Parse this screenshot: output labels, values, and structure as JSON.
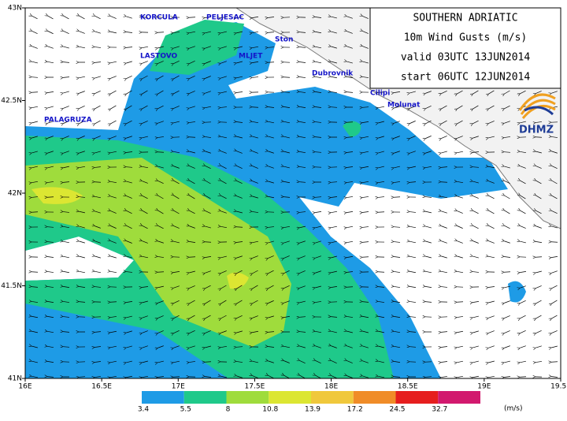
{
  "title_box": {
    "lines": [
      "SOUTHERN ADRIATIC",
      "10m Wind Gusts (m/s)",
      "valid 03UTC 13JUN2014",
      "start 06UTC 12JUN2014"
    ]
  },
  "places": [
    "KORCULA",
    "PELJESAC",
    "LASTOVO",
    "MLJET",
    "Ston",
    "Dubrovnik",
    "Cilipi",
    "Molunat",
    "PALAGRUZA"
  ],
  "map": {
    "xlim": [
      16,
      19.5
    ],
    "ylim": [
      41,
      43
    ],
    "xticks": [
      {
        "value": 16,
        "label": "16E"
      },
      {
        "value": 16.5,
        "label": "16.5E"
      },
      {
        "value": 17,
        "label": "17E"
      },
      {
        "value": 17.5,
        "label": "17.5E"
      },
      {
        "value": 18,
        "label": "18E"
      },
      {
        "value": 18.5,
        "label": "18.5E"
      },
      {
        "value": 19,
        "label": "19E"
      },
      {
        "value": 19.5,
        "label": "19.5E"
      }
    ],
    "yticks": [
      {
        "value": 41,
        "label": "41N"
      },
      {
        "value": 41.5,
        "label": "41.5N"
      },
      {
        "value": 42,
        "label": "42N"
      },
      {
        "value": 42.5,
        "label": "42.5N"
      },
      {
        "value": 43,
        "label": "43N"
      }
    ]
  },
  "colorbar": {
    "labels": [
      "3.4",
      "5.5",
      "8",
      "10.8",
      "13.9",
      "17.2",
      "24.5",
      "32.7"
    ],
    "colors": [
      "#1e9be6",
      "#1fc98a",
      "#9fdc3c",
      "#dce632",
      "#f0c83c",
      "#f08c28",
      "#e61e1e",
      "#d2196e"
    ],
    "unit": "(m/s)"
  },
  "logo": "DHMZ"
}
